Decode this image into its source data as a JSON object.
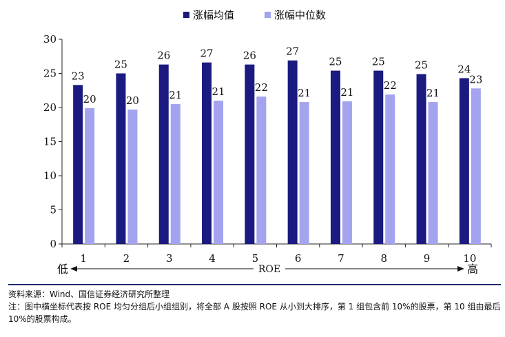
{
  "chart_data": {
    "type": "bar",
    "categories": [
      "1",
      "2",
      "3",
      "4",
      "5",
      "6",
      "7",
      "8",
      "9",
      "10"
    ],
    "series": [
      {
        "name": "涨幅均值",
        "color": "#1a1a80",
        "values": [
          23.3,
          25.0,
          26.3,
          26.6,
          26.3,
          26.9,
          25.4,
          25.4,
          24.9,
          24.3
        ],
        "labels": [
          "23",
          "25",
          "26",
          "27",
          "26",
          "27",
          "25",
          "25",
          "25",
          "24"
        ]
      },
      {
        "name": "涨幅中位数",
        "color": "#a3a3f0",
        "values": [
          19.9,
          19.7,
          20.5,
          21.0,
          21.6,
          20.8,
          20.9,
          21.9,
          20.8,
          22.8
        ],
        "labels": [
          "20",
          "20",
          "21",
          "21",
          "22",
          "21",
          "21",
          "22",
          "21",
          "23"
        ]
      }
    ],
    "ylim": [
      0,
      30
    ],
    "yticks": [
      "0",
      "5",
      "10",
      "15",
      "20",
      "25",
      "30"
    ],
    "xlabel": "ROE",
    "x_low_label": "低",
    "x_high_label": "高",
    "legend_position": "top-center",
    "grid": false
  },
  "notes": {
    "source": "资料来源：Wind、国信证券经济研究所整理",
    "note": "注：图中横坐标代表按 ROE 均匀分组后小组组别，将全部 A 股按照 ROE 从小到大排序，第 1 组包含前 10%的股票，第 10 组由最后 10%的股票构成。"
  }
}
